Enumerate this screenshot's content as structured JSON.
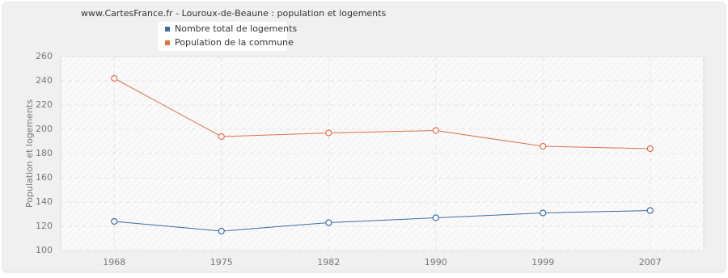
{
  "chart_data": {
    "type": "line",
    "title": "www.CartesFrance.fr - Louroux-de-Beaune : population et logements",
    "y_label": "Population et logements",
    "categories": [
      "1968",
      "1975",
      "1982",
      "1990",
      "1999",
      "2007"
    ],
    "series": [
      {
        "name": "Nombre total de logements",
        "color": "#3d6d9e",
        "values": [
          124,
          116,
          123,
          127,
          131,
          133
        ]
      },
      {
        "name": "Population de la commune",
        "color": "#e0714a",
        "values": [
          242,
          194,
          197,
          199,
          186,
          184
        ]
      }
    ],
    "ylim": [
      100,
      260
    ],
    "yticks": [
      100,
      120,
      140,
      160,
      180,
      200,
      220,
      240,
      260
    ],
    "grid": true
  }
}
